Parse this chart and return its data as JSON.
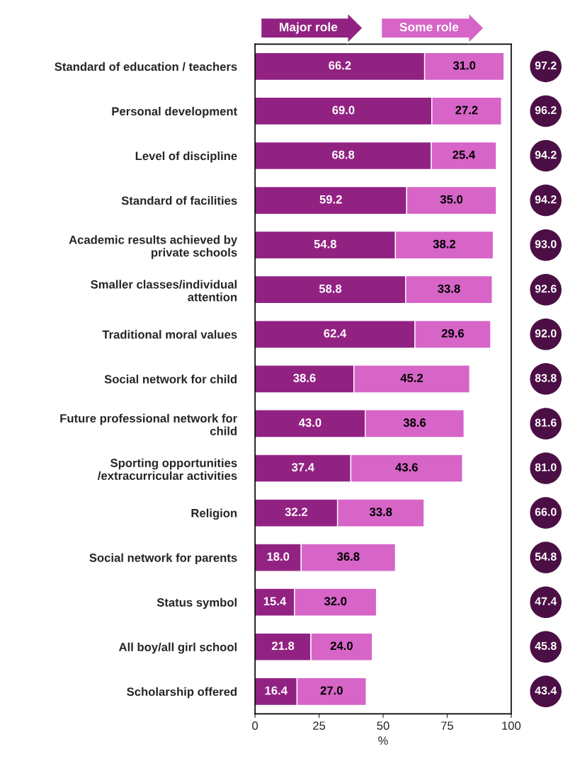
{
  "chart_data": {
    "type": "bar",
    "orientation": "horizontal",
    "stacked": true,
    "xlabel": "%",
    "categories": [
      "Standard of education / teachers",
      "Personal development",
      "Level of discipline",
      "Standard of facilities",
      "Academic results achieved by\nprivate schools",
      "Smaller classes/individual\nattention",
      "Traditional moral values",
      "Social network for child",
      "Future professional network for\nchild",
      "Sporting opportunities\n/extracurricular activities",
      "Religion",
      "Social network for parents",
      "Status symbol",
      "All boy/all girl school",
      "Scholarship offered"
    ],
    "series": [
      {
        "name": "Major role",
        "color": "#922282",
        "values": [
          66.2,
          69.0,
          68.8,
          59.2,
          54.8,
          58.8,
          62.4,
          38.6,
          43.0,
          37.4,
          32.2,
          18.0,
          15.4,
          21.8,
          16.4
        ],
        "value_labels": [
          "66.2",
          "69.0",
          "68.8",
          "59.2",
          "54.8",
          "58.8",
          "62.4",
          "38.6",
          "43.0",
          "37.4",
          "32.2",
          "18.0",
          "15.4",
          "21.8",
          "16.4"
        ]
      },
      {
        "name": "Some role",
        "color": "#d764c7",
        "values": [
          31.0,
          27.2,
          25.4,
          35.0,
          38.2,
          33.8,
          29.6,
          45.2,
          38.6,
          43.6,
          33.8,
          36.8,
          32.0,
          24.0,
          27.0
        ],
        "value_labels": [
          "31.0",
          "27.2",
          "25.4",
          "35.0",
          "38.2",
          "33.8",
          "29.6",
          "45.2",
          "38.6",
          "43.6",
          "33.8",
          "36.8",
          "32.0",
          "24.0",
          "27.0"
        ]
      }
    ],
    "annotations": [
      "97.2",
      "96.2",
      "94.2",
      "94.2",
      "93.0",
      "92.6",
      "92.0",
      "83.8",
      "81.6",
      "81.0",
      "66.0",
      "54.8",
      "47.4",
      "45.8",
      "43.4"
    ],
    "legend": "top",
    "grid": false,
    "xlim": [
      0,
      100
    ],
    "xticks": [
      0,
      25,
      50,
      75,
      100
    ]
  }
}
